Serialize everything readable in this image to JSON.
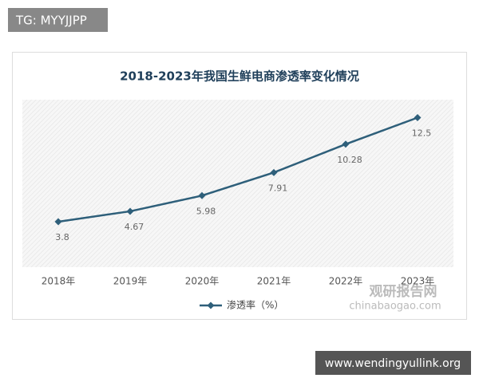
{
  "chart_data": {
    "type": "line",
    "title": "2018-2023年我国生鲜电商渗透率变化情况",
    "categories": [
      "2018年",
      "2019年",
      "2020年",
      "2021年",
      "2022年",
      "2023年"
    ],
    "series": [
      {
        "name": "渗透率（%）",
        "color": "#2e5f7a",
        "values": [
          3.8,
          4.67,
          5.98,
          7.91,
          10.28,
          12.5
        ]
      }
    ],
    "ylim": [
      0,
      14
    ],
    "legend": "bottom"
  },
  "watermarks": {
    "top_left": "TG: MYYJJPP",
    "bottom_right": "www.wendingyullink.org",
    "logo": "观研报告网",
    "logo_url": "chinabaogao.com"
  }
}
